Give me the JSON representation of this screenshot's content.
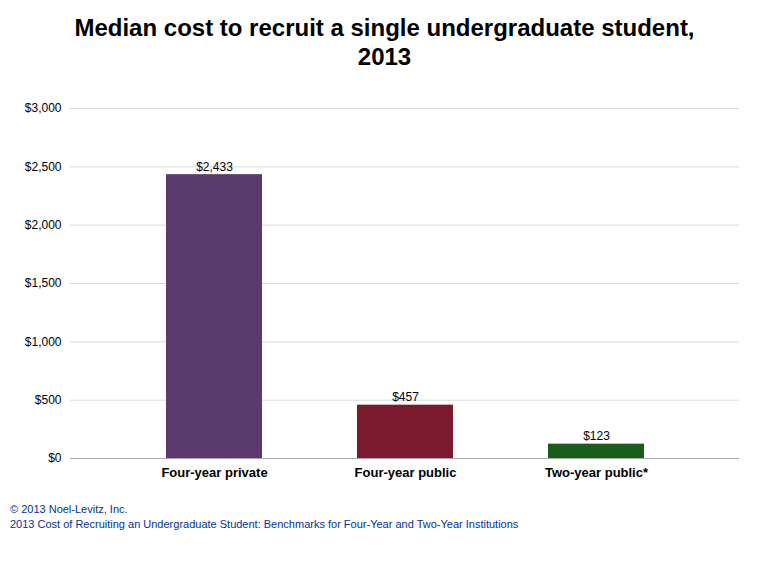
{
  "chart_data": {
    "type": "bar",
    "title": "Median cost to recruit a single undergraduate student, 2013",
    "categories": [
      "Four-year private",
      "Four-year public",
      "Two-year public*"
    ],
    "values": [
      2433,
      457,
      123
    ],
    "value_labels": [
      "$2,433",
      "$457",
      "$123"
    ],
    "colors": [
      "#5b3a6e",
      "#7b1a2e",
      "#1a5c1a"
    ],
    "data_labels": true,
    "ylim": [
      0,
      3000
    ],
    "yticks": [
      {
        "value": 0,
        "label": "$0"
      },
      {
        "value": 500,
        "label": "$500"
      },
      {
        "value": 1000,
        "label": "$1,000"
      },
      {
        "value": 1500,
        "label": "$1,500"
      },
      {
        "value": 2000,
        "label": "$2,000"
      },
      {
        "value": 2500,
        "label": "$2,500"
      },
      {
        "value": 3000,
        "label": "$3,000"
      }
    ],
    "grid": true,
    "annotations": [
      "© 2013 Noel-Levitz, Inc.",
      "2013 Cost of Recruiting an Undergraduate Student: Benchmarks for Four-Year and Two-Year Institutions"
    ]
  }
}
